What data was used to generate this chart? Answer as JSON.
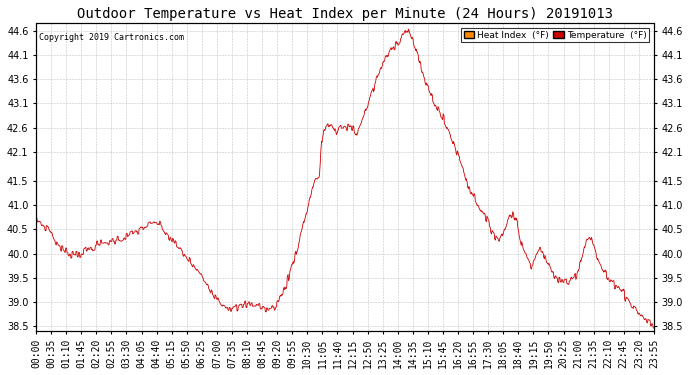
{
  "title": "Outdoor Temperature vs Heat Index per Minute (24 Hours) 20191013",
  "copyright": "Copyright 2019 Cartronics.com",
  "legend_heat_index": "Heat Index  (°F)",
  "legend_temperature": "Temperature  (°F)",
  "line_color": "#cc0000",
  "background_color": "#ffffff",
  "grid_color": "#aaaaaa",
  "ylim": [
    38.4,
    44.75
  ],
  "yticks": [
    38.5,
    39.0,
    39.5,
    40.0,
    40.5,
    41.0,
    41.5,
    42.1,
    42.6,
    43.1,
    43.6,
    44.1,
    44.6
  ],
  "title_fontsize": 10,
  "copyright_fontsize": 6,
  "tick_fontsize": 7,
  "xtick_labels": [
    "00:00",
    "00:35",
    "01:10",
    "01:45",
    "02:20",
    "02:55",
    "03:30",
    "04:05",
    "04:40",
    "05:15",
    "05:50",
    "06:25",
    "07:00",
    "07:35",
    "08:10",
    "08:45",
    "09:20",
    "09:55",
    "10:30",
    "11:05",
    "11:40",
    "12:15",
    "12:50",
    "13:25",
    "14:00",
    "14:35",
    "15:10",
    "15:45",
    "16:20",
    "16:55",
    "17:30",
    "18:05",
    "18:40",
    "19:15",
    "19:50",
    "20:25",
    "21:00",
    "21:35",
    "22:10",
    "22:45",
    "23:20",
    "23:55"
  ],
  "n_points": 1440,
  "curve": [
    [
      0.0,
      40.65
    ],
    [
      0.08,
      40.68
    ],
    [
      0.2,
      40.62
    ],
    [
      0.33,
      40.55
    ],
    [
      0.5,
      40.52
    ],
    [
      0.6,
      40.42
    ],
    [
      0.7,
      40.3
    ],
    [
      0.85,
      40.18
    ],
    [
      1.0,
      40.1
    ],
    [
      1.1,
      40.05
    ],
    [
      1.2,
      40.02
    ],
    [
      1.35,
      40.0
    ],
    [
      1.5,
      40.0
    ],
    [
      1.7,
      40.0
    ],
    [
      1.9,
      40.05
    ],
    [
      2.1,
      40.1
    ],
    [
      2.3,
      40.15
    ],
    [
      2.5,
      40.2
    ],
    [
      2.7,
      40.22
    ],
    [
      2.9,
      40.25
    ],
    [
      3.1,
      40.28
    ],
    [
      3.3,
      40.3
    ],
    [
      3.5,
      40.35
    ],
    [
      3.7,
      40.4
    ],
    [
      3.9,
      40.45
    ],
    [
      4.1,
      40.52
    ],
    [
      4.33,
      40.58
    ],
    [
      4.5,
      40.6
    ],
    [
      4.65,
      40.65
    ],
    [
      4.75,
      40.62
    ],
    [
      4.85,
      40.55
    ],
    [
      5.0,
      40.45
    ],
    [
      5.2,
      40.32
    ],
    [
      5.4,
      40.2
    ],
    [
      5.6,
      40.08
    ],
    [
      5.8,
      39.95
    ],
    [
      6.0,
      39.82
    ],
    [
      6.2,
      39.68
    ],
    [
      6.4,
      39.55
    ],
    [
      6.6,
      39.4
    ],
    [
      6.8,
      39.25
    ],
    [
      7.0,
      39.1
    ],
    [
      7.2,
      38.98
    ],
    [
      7.4,
      38.9
    ],
    [
      7.58,
      38.88
    ],
    [
      7.67,
      38.87
    ],
    [
      7.75,
      38.87
    ],
    [
      7.83,
      38.88
    ],
    [
      7.92,
      38.9
    ],
    [
      8.0,
      38.92
    ],
    [
      8.1,
      38.94
    ],
    [
      8.2,
      38.95
    ],
    [
      8.33,
      38.96
    ],
    [
      8.5,
      38.95
    ],
    [
      8.67,
      38.93
    ],
    [
      8.75,
      38.88
    ],
    [
      8.83,
      38.87
    ],
    [
      8.92,
      38.85
    ],
    [
      9.0,
      38.85
    ],
    [
      9.08,
      38.85
    ],
    [
      9.17,
      38.87
    ],
    [
      9.25,
      38.9
    ],
    [
      9.33,
      38.95
    ],
    [
      9.5,
      39.1
    ],
    [
      9.67,
      39.3
    ],
    [
      9.83,
      39.55
    ],
    [
      10.0,
      39.85
    ],
    [
      10.17,
      40.15
    ],
    [
      10.33,
      40.5
    ],
    [
      10.5,
      40.85
    ],
    [
      10.67,
      41.2
    ],
    [
      10.83,
      41.55
    ],
    [
      11.0,
      41.55
    ],
    [
      11.08,
      42.2
    ],
    [
      11.17,
      42.55
    ],
    [
      11.25,
      42.62
    ],
    [
      11.33,
      42.65
    ],
    [
      11.42,
      42.65
    ],
    [
      11.5,
      42.62
    ],
    [
      11.58,
      42.58
    ],
    [
      11.67,
      42.45
    ],
    [
      11.75,
      42.55
    ],
    [
      11.83,
      42.6
    ],
    [
      12.0,
      42.62
    ],
    [
      12.17,
      42.62
    ],
    [
      12.33,
      42.58
    ],
    [
      12.42,
      42.45
    ],
    [
      12.5,
      42.55
    ],
    [
      12.67,
      42.75
    ],
    [
      12.83,
      43.0
    ],
    [
      13.0,
      43.25
    ],
    [
      13.17,
      43.5
    ],
    [
      13.33,
      43.75
    ],
    [
      13.5,
      43.95
    ],
    [
      13.67,
      44.1
    ],
    [
      13.83,
      44.25
    ],
    [
      14.0,
      44.35
    ],
    [
      14.17,
      44.45
    ],
    [
      14.33,
      44.58
    ],
    [
      14.42,
      44.65
    ],
    [
      14.5,
      44.55
    ],
    [
      14.58,
      44.45
    ],
    [
      14.67,
      44.35
    ],
    [
      14.75,
      44.2
    ],
    [
      14.83,
      44.05
    ],
    [
      15.0,
      43.75
    ],
    [
      15.17,
      43.5
    ],
    [
      15.33,
      43.28
    ],
    [
      15.5,
      43.1
    ],
    [
      15.67,
      42.92
    ],
    [
      15.83,
      42.75
    ],
    [
      16.0,
      42.55
    ],
    [
      16.17,
      42.35
    ],
    [
      16.33,
      42.12
    ],
    [
      16.5,
      41.88
    ],
    [
      16.67,
      41.62
    ],
    [
      16.75,
      41.45
    ],
    [
      16.83,
      41.35
    ],
    [
      17.0,
      41.18
    ],
    [
      17.17,
      41.02
    ],
    [
      17.33,
      40.85
    ],
    [
      17.5,
      40.68
    ],
    [
      17.67,
      40.52
    ],
    [
      17.83,
      40.38
    ],
    [
      18.0,
      40.28
    ],
    [
      18.08,
      40.35
    ],
    [
      18.17,
      40.45
    ],
    [
      18.25,
      40.58
    ],
    [
      18.33,
      40.7
    ],
    [
      18.42,
      40.8
    ],
    [
      18.5,
      40.85
    ],
    [
      18.58,
      40.78
    ],
    [
      18.67,
      40.65
    ],
    [
      18.75,
      40.45
    ],
    [
      18.83,
      40.25
    ],
    [
      19.0,
      39.98
    ],
    [
      19.17,
      39.85
    ],
    [
      19.25,
      39.8
    ],
    [
      19.33,
      39.85
    ],
    [
      19.42,
      39.95
    ],
    [
      19.5,
      40.05
    ],
    [
      19.58,
      40.1
    ],
    [
      19.67,
      40.05
    ],
    [
      19.75,
      39.95
    ],
    [
      19.83,
      39.82
    ],
    [
      20.0,
      39.65
    ],
    [
      20.17,
      39.52
    ],
    [
      20.33,
      39.45
    ],
    [
      20.5,
      39.42
    ],
    [
      20.67,
      39.42
    ],
    [
      20.75,
      39.45
    ],
    [
      20.83,
      39.5
    ],
    [
      21.0,
      39.6
    ],
    [
      21.08,
      39.72
    ],
    [
      21.17,
      39.88
    ],
    [
      21.25,
      40.05
    ],
    [
      21.33,
      40.22
    ],
    [
      21.42,
      40.32
    ],
    [
      21.5,
      40.35
    ],
    [
      21.58,
      40.28
    ],
    [
      21.67,
      40.15
    ],
    [
      21.75,
      40.0
    ],
    [
      21.83,
      39.85
    ],
    [
      22.0,
      39.68
    ],
    [
      22.17,
      39.52
    ],
    [
      22.25,
      39.45
    ],
    [
      22.33,
      39.42
    ],
    [
      22.5,
      39.38
    ],
    [
      22.67,
      39.3
    ],
    [
      22.83,
      39.18
    ],
    [
      23.0,
      39.05
    ],
    [
      23.17,
      38.92
    ],
    [
      23.33,
      38.82
    ],
    [
      23.5,
      38.72
    ],
    [
      23.67,
      38.65
    ],
    [
      23.83,
      38.58
    ],
    [
      24.0,
      38.5
    ]
  ]
}
